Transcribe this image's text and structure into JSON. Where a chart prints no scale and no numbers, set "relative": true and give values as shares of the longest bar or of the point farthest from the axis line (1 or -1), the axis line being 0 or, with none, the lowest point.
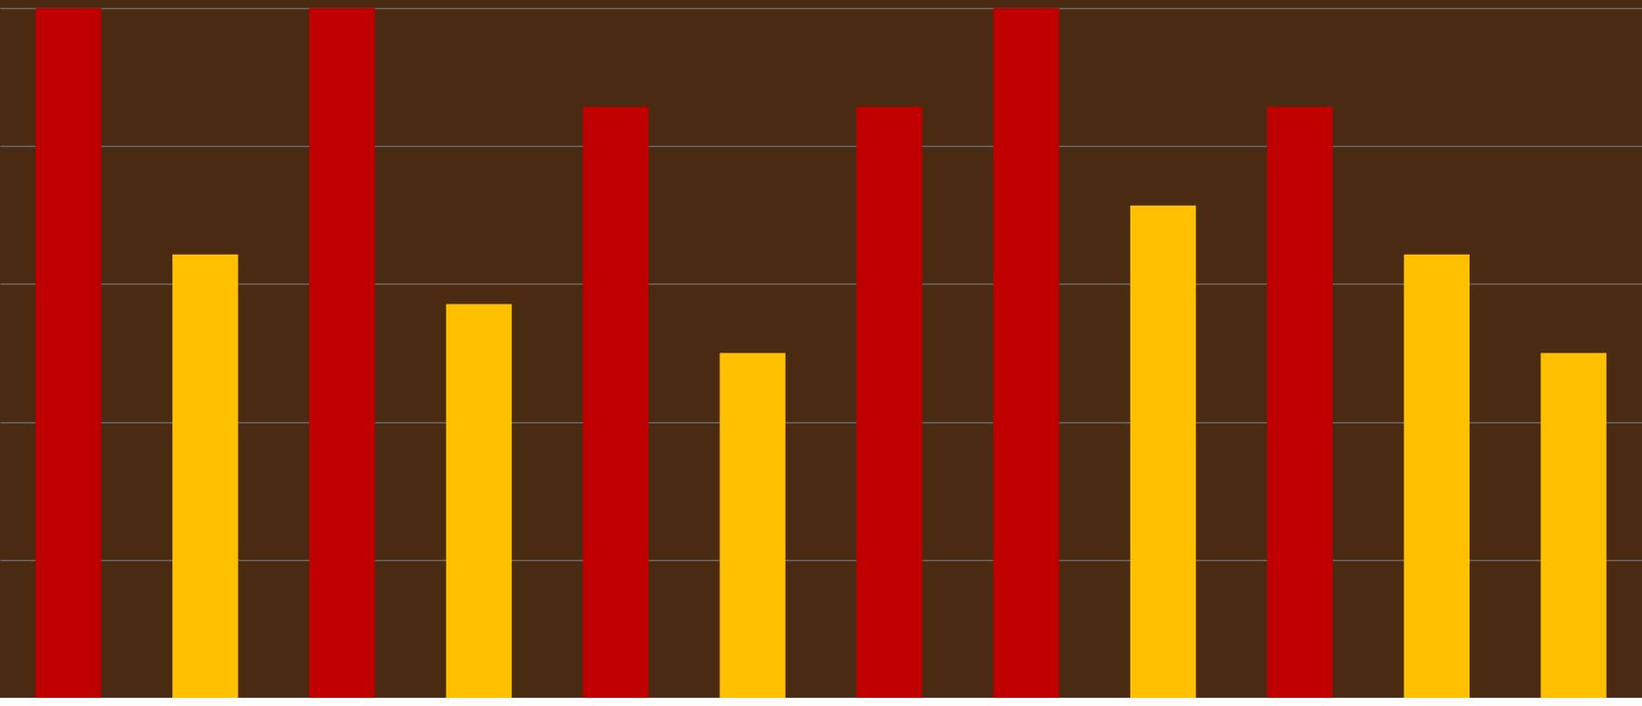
{
  "chart_data": {
    "type": "bar",
    "relative": true,
    "categories": [
      null,
      null,
      null,
      null,
      null,
      null,
      null,
      null,
      null,
      null,
      null,
      null
    ],
    "values": [
      1,
      0.643,
      1,
      0.571,
      0.857,
      0.5,
      0.857,
      1,
      0.714,
      0.857,
      0.643,
      0.5
    ],
    "colors": [
      "#c00000",
      "#ffc000",
      "#c00000",
      "#ffc000",
      "#c00000",
      "#ffc000",
      "#c00000",
      "#c00000",
      "#ffc000",
      "#c00000",
      "#ffc000",
      "#ffc000"
    ],
    "grid": true,
    "tick_labels": false
  }
}
